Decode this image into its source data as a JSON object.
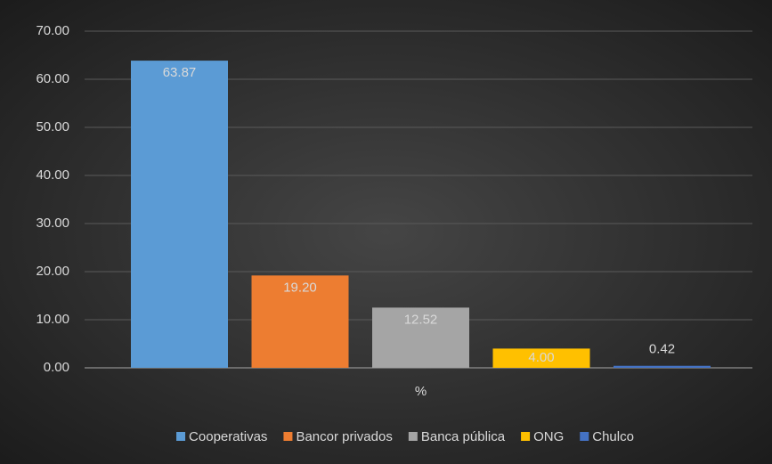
{
  "chart_data": {
    "type": "bar",
    "categories": [
      "%"
    ],
    "series": [
      {
        "name": "Cooperativas",
        "color": "#5b9bd5",
        "values": [
          63.87
        ],
        "value_labels": [
          "63.87"
        ]
      },
      {
        "name": "Bancor privados",
        "color": "#ed7d31",
        "values": [
          19.2
        ],
        "value_labels": [
          "19.20"
        ]
      },
      {
        "name": "Banca pública",
        "color": "#a5a5a5",
        "values": [
          12.52
        ],
        "value_labels": [
          "12.52"
        ]
      },
      {
        "name": "ONG",
        "color": "#ffc000",
        "values": [
          4
        ],
        "value_labels": [
          "4.00"
        ]
      },
      {
        "name": "Chulco",
        "color": "#4472c4",
        "values": [
          0.42
        ],
        "value_labels": [
          "0.42"
        ]
      }
    ],
    "ylim": [
      0,
      70
    ],
    "yticks": [
      {
        "value": 0,
        "label": "0.00"
      },
      {
        "value": 10,
        "label": "10.00"
      },
      {
        "value": 20,
        "label": "20.00"
      },
      {
        "value": 30,
        "label": "30.00"
      },
      {
        "value": 40,
        "label": "40.00"
      },
      {
        "value": 50,
        "label": "50.00"
      },
      {
        "value": 60,
        "label": "60.00"
      },
      {
        "value": 70,
        "label": "70.00"
      }
    ],
    "grid": true,
    "legend": "bottom"
  }
}
